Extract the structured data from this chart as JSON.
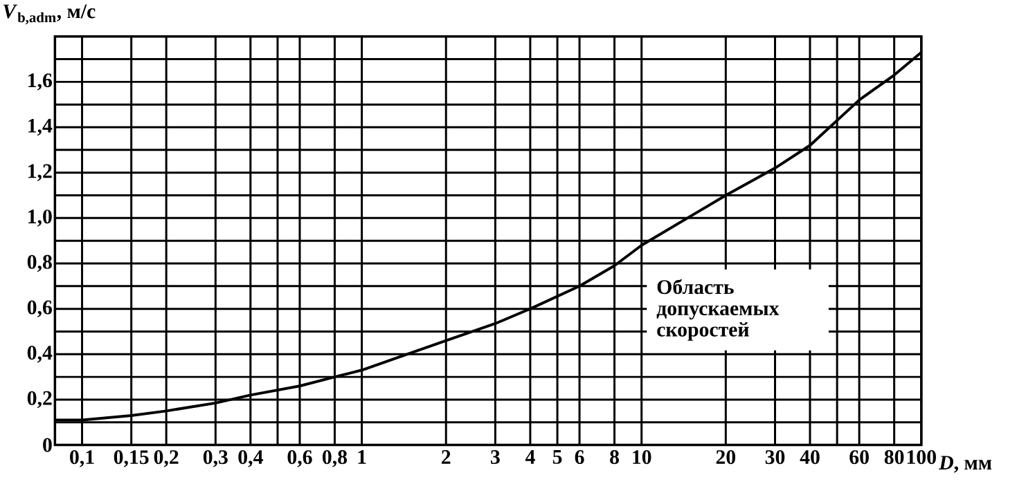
{
  "chart_data": {
    "type": "line",
    "xlabel": "*D*, мм",
    "ylabel": "*V*$_{b,adm}$, м/с",
    "log": "x",
    "grid": true,
    "xlim": [
      0.08,
      100
    ],
    "ylim": [
      0,
      1.8
    ],
    "xticks": [
      {
        "value": 0.1,
        "label": "0,1"
      },
      {
        "value": 0.15,
        "label": "0,15"
      },
      {
        "value": 0.2,
        "label": "0,2"
      },
      {
        "value": 0.3,
        "label": "0,3"
      },
      {
        "value": 0.4,
        "label": "0,4"
      },
      {
        "value": 0.5,
        "label": null
      },
      {
        "value": 0.6,
        "label": "0,6"
      },
      {
        "value": 0.8,
        "label": "0,8"
      },
      {
        "value": 1,
        "label": "1"
      },
      {
        "value": 2,
        "label": "2"
      },
      {
        "value": 3,
        "label": "3"
      },
      {
        "value": 4,
        "label": "4"
      },
      {
        "value": 5,
        "label": "5"
      },
      {
        "value": 6,
        "label": "6"
      },
      {
        "value": 8,
        "label": "8"
      },
      {
        "value": 10,
        "label": "10"
      },
      {
        "value": 20,
        "label": "20"
      },
      {
        "value": 30,
        "label": "30"
      },
      {
        "value": 40,
        "label": "40"
      },
      {
        "value": 50,
        "label": null
      },
      {
        "value": 60,
        "label": "60"
      },
      {
        "value": 80,
        "label": "80"
      },
      {
        "value": 100,
        "label": "100"
      }
    ],
    "yticks": [
      {
        "value": 0,
        "label": "0"
      },
      {
        "value": 0.1,
        "label": null
      },
      {
        "value": 0.2,
        "label": "0,2"
      },
      {
        "value": 0.3,
        "label": null
      },
      {
        "value": 0.4,
        "label": "0,4"
      },
      {
        "value": 0.5,
        "label": null
      },
      {
        "value": 0.6,
        "label": "0,6"
      },
      {
        "value": 0.7,
        "label": null
      },
      {
        "value": 0.8,
        "label": "0,8"
      },
      {
        "value": 0.9,
        "label": null
      },
      {
        "value": 1.0,
        "label": "1,0"
      },
      {
        "value": 1.1,
        "label": null
      },
      {
        "value": 1.2,
        "label": "1,2"
      },
      {
        "value": 1.3,
        "label": null
      },
      {
        "value": 1.4,
        "label": "1,4"
      },
      {
        "value": 1.5,
        "label": null
      },
      {
        "value": 1.6,
        "label": "1,6"
      },
      {
        "value": 1.7,
        "label": null
      }
    ],
    "x": [
      0.08,
      0.1,
      0.15,
      0.2,
      0.3,
      0.4,
      0.6,
      0.8,
      1,
      2,
      3,
      4,
      6,
      8,
      10,
      20,
      30,
      40,
      60,
      80,
      100
    ],
    "series": [
      {
        "color": "#000000",
        "values": [
          0.11,
          0.11,
          0.13,
          0.15,
          0.185,
          0.22,
          0.26,
          0.3,
          0.33,
          0.46,
          0.535,
          0.6,
          0.7,
          0.79,
          0.88,
          1.1,
          1.22,
          1.32,
          1.52,
          1.63,
          1.73
        ]
      }
    ],
    "annotations": [
      "Область допускаемых скоростей"
    ]
  }
}
